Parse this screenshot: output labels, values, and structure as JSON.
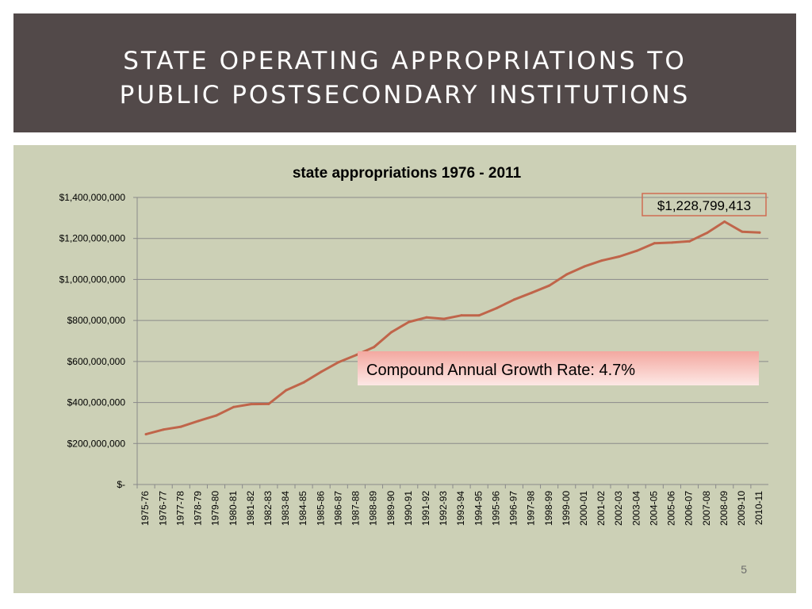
{
  "slide": {
    "title_line1": "STATE OPERATING APPROPRIATIONS TO",
    "title_line2": "PUBLIC POSTSECONDARY INSTITUTIONS",
    "page_number": "5"
  },
  "colors": {
    "title_bg": "#524949",
    "chart_bg": "#ccd0b6",
    "line": "#c0654a",
    "callout_border": "#d06c52",
    "growth_box_top": "#f3a8a0",
    "growth_box_bottom": "#fde8e5"
  },
  "chart_data": {
    "type": "line",
    "title": "state appropriations 1976 - 2011",
    "xlabel": "",
    "ylabel": "",
    "ylim": [
      0,
      1400000000
    ],
    "yticks": [
      0,
      200000000,
      400000000,
      600000000,
      800000000,
      1000000000,
      1200000000,
      1400000000
    ],
    "ytick_labels": [
      "$-",
      "$200,000,000",
      "$400,000,000",
      "$600,000,000",
      "$800,000,000",
      "$1,000,000,000",
      "$1,200,000,000",
      "$1,400,000,000"
    ],
    "grid": true,
    "legend": "none",
    "categories": [
      "1975-76",
      "1976-77",
      "1977-78",
      "1978-79",
      "1979-80",
      "1980-81",
      "1981-82",
      "1982-83",
      "1983-84",
      "1984-85",
      "1985-86",
      "1986-87",
      "1987-88",
      "1988-89",
      "1989-90",
      "1990-91",
      "1991-92",
      "1992-93",
      "1993-94",
      "1994-95",
      "1995-96",
      "1996-97",
      "1997-98",
      "1998-99",
      "1999-00",
      "2000-01",
      "2001-02",
      "2002-03",
      "2003-04",
      "2004-05",
      "2005-06",
      "2006-07",
      "2007-08",
      "2008-09",
      "2009-10",
      "2010-11"
    ],
    "series": [
      {
        "values": [
          245000000,
          268000000,
          282000000,
          310000000,
          336000000,
          378000000,
          392000000,
          393000000,
          460000000,
          498000000,
          550000000,
          597000000,
          632000000,
          670000000,
          743000000,
          793000000,
          815000000,
          808000000,
          825000000,
          825000000,
          860000000,
          902000000,
          935000000,
          970000000,
          1025000000,
          1063000000,
          1092000000,
          1112000000,
          1140000000,
          1177000000,
          1180000000,
          1186000000,
          1227000000,
          1282000000,
          1233000000,
          1228799413
        ]
      }
    ],
    "annotations": {
      "last_value_label": "$1,228,799,413",
      "growth_label": "Compound Annual Growth Rate: 4.7%"
    }
  }
}
